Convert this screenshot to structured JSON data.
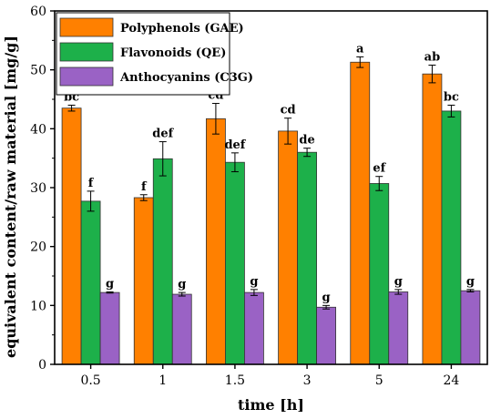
{
  "chart_data": {
    "type": "bar",
    "title": "",
    "xlabel": "time [h]",
    "ylabel": "equivalent content/raw material [mg/g]",
    "categories": [
      "0.5",
      "1",
      "1.5",
      "3",
      "5",
      "24"
    ],
    "ylim": [
      0,
      60
    ],
    "yticks": [
      0,
      10,
      20,
      30,
      40,
      50,
      60
    ],
    "grid": false,
    "legend_position": "top-left",
    "series": [
      {
        "name": "Polyphenols (GAE)",
        "color": "#FF8000",
        "values": [
          43.5,
          28.3,
          41.7,
          39.6,
          51.3,
          49.3
        ],
        "errors": [
          0.5,
          0.5,
          2.6,
          2.2,
          0.9,
          1.5
        ],
        "letters": [
          "bc",
          "f",
          "cd",
          "cd",
          "a",
          "ab"
        ]
      },
      {
        "name": "Flavonoids (QE)",
        "color": "#1DB04A",
        "values": [
          27.7,
          34.9,
          34.3,
          36.0,
          30.7,
          43.0
        ],
        "errors": [
          1.7,
          2.9,
          1.6,
          0.7,
          1.2,
          1.0
        ],
        "letters": [
          "f",
          "def",
          "def",
          "de",
          "ef",
          "bc"
        ]
      },
      {
        "name": "Anthocyanins (C3G)",
        "color": "#9A62C5",
        "values": [
          12.2,
          11.9,
          12.2,
          9.7,
          12.3,
          12.5
        ],
        "errors": [
          0.1,
          0.3,
          0.5,
          0.3,
          0.4,
          0.2
        ],
        "letters": [
          "g",
          "g",
          "g",
          "g",
          "g",
          "g"
        ]
      }
    ]
  }
}
